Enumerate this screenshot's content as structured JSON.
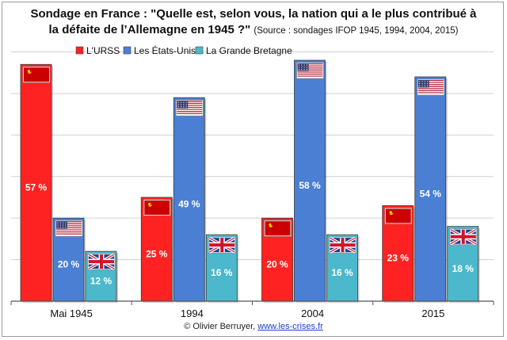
{
  "title_line1": "Sondage en France : \"Quelle est, selon vous, la nation qui a le plus contribué à",
  "title_line2": "la défaite de l’Allemagne en 1945 ?\"",
  "source": "(Source : sondages IFOP 1945, 1994, 2004, 2015)",
  "credit_prefix": "© Olivier Berruyer, ",
  "credit_link": "www.les-crises.fr",
  "colors": {
    "urss": "#ff2222",
    "usa": "#4a7fd4",
    "uk": "#4bb8cc",
    "grid": "#d0d0d0",
    "axis": "#555555"
  },
  "chart_data": {
    "type": "bar",
    "categories": [
      "Mai 1945",
      "1994",
      "2004",
      "2015"
    ],
    "series": [
      {
        "name": "L'URSS",
        "values": [
          57,
          25,
          20,
          23
        ],
        "labels": [
          "57 %",
          "25 %",
          "20 %",
          "23 %"
        ],
        "flag": "ussr-flag-icon"
      },
      {
        "name": "Les États-Unis",
        "values": [
          20,
          49,
          58,
          54
        ],
        "labels": [
          "20 %",
          "49 %",
          "58 %",
          "54 %"
        ],
        "flag": "usa-flag-icon"
      },
      {
        "name": "La Grande Bretagne",
        "values": [
          12,
          16,
          16,
          18
        ],
        "labels": [
          "12 %",
          "16 %",
          "16 %",
          "18 %"
        ],
        "flag": "uk-flag-icon"
      }
    ],
    "ylim": [
      0,
      60
    ],
    "grid": true,
    "legend": "top"
  }
}
